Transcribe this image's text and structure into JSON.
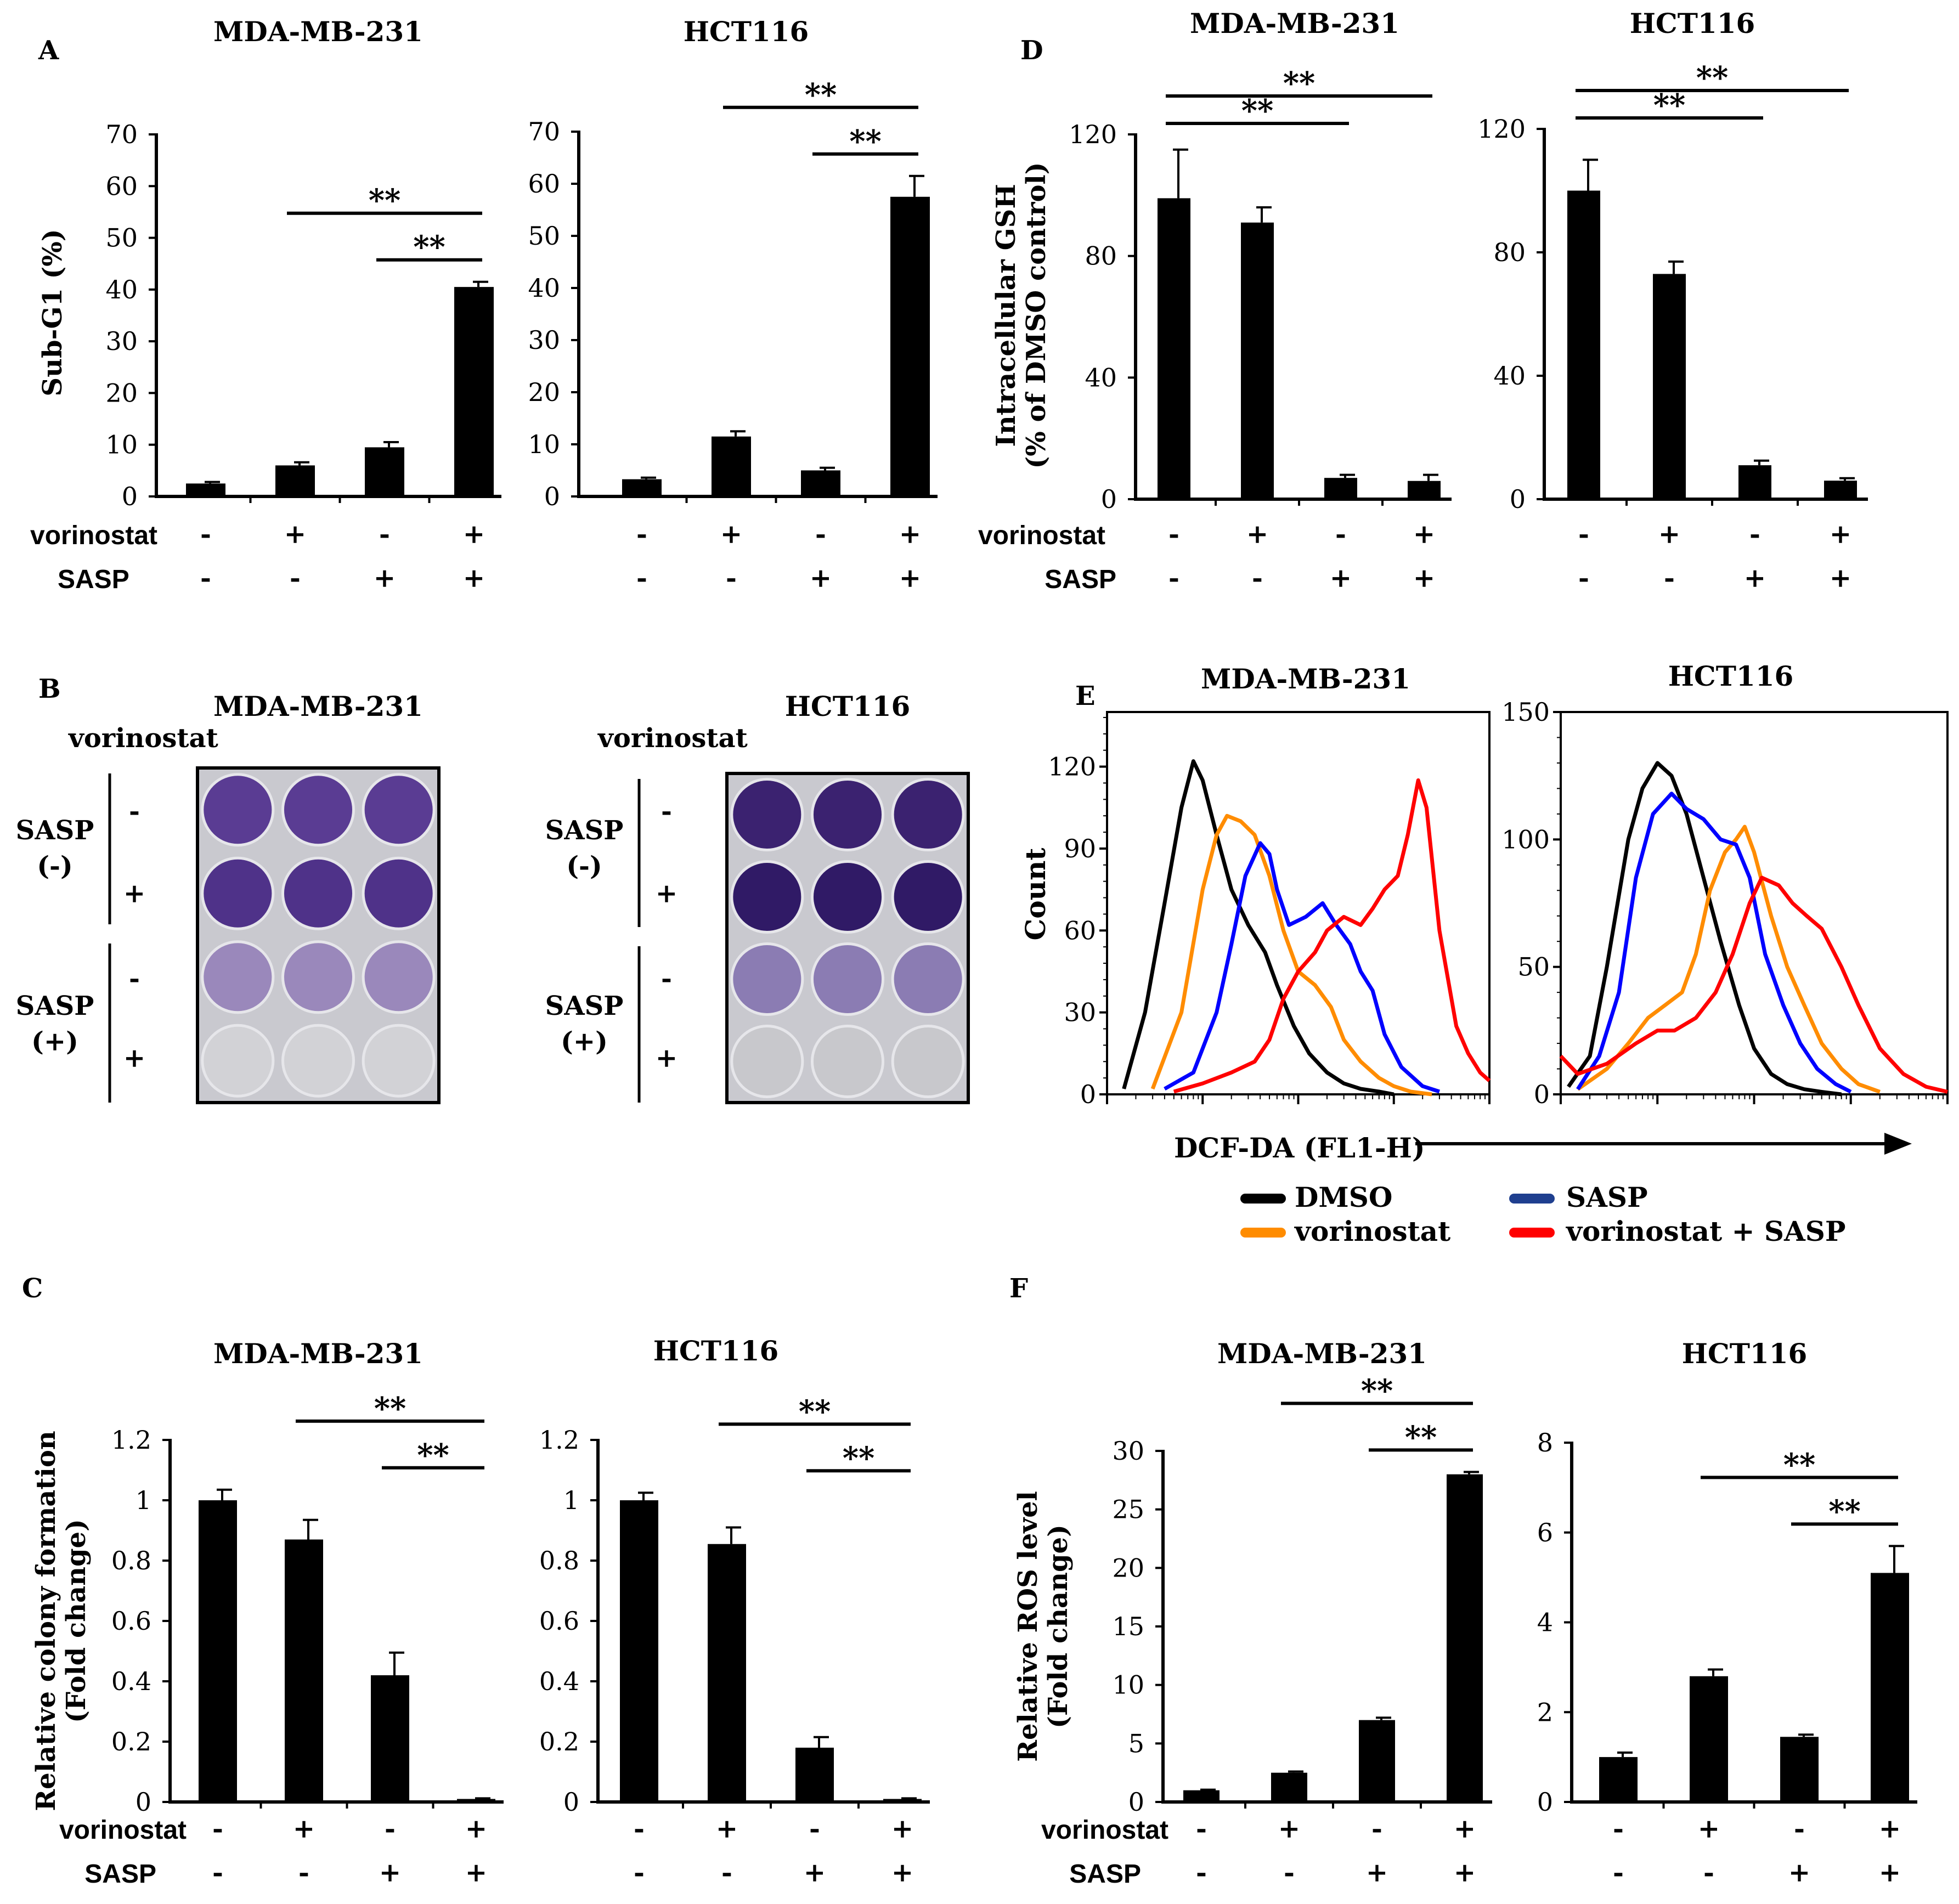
{
  "panel_letters": [
    "A",
    "B",
    "C",
    "D",
    "E",
    "F"
  ],
  "row_labels": {
    "vorinostat": "vorinostat",
    "sasp": "SASP"
  },
  "signs": {
    "vorinostat": [
      "-",
      "+",
      "-",
      "+"
    ],
    "sasp": [
      "-",
      "-",
      "+",
      "+"
    ]
  },
  "significance": "**",
  "panel_b": {
    "titles": [
      "MDA-MB-231",
      "HCT116"
    ],
    "vorinostat_label": "vorinostat",
    "groups": [
      {
        "label": "SASP",
        "sub": "(-)",
        "rows": [
          "-",
          "+"
        ]
      },
      {
        "label": "SASP",
        "sub": "(+)",
        "rows": [
          "-",
          "+"
        ]
      }
    ],
    "plate_well_colors": [
      [
        "#5a3c93",
        "#5a3c93",
        "#4f3289",
        "#4f3289",
        "#9a88bb",
        "#d2d2d6"
      ],
      [
        "#3b2270",
        "#3b2270",
        "#301a66",
        "#301a66",
        "#8b7cb3",
        "#c8c8cc"
      ]
    ]
  },
  "panel_e": {
    "xlabel": "DCF-DA (FL1-H)",
    "legend": [
      {
        "name": "DMSO",
        "color": "#000000"
      },
      {
        "name": "vorinostat",
        "color": "#ff8c00"
      },
      {
        "name": "SASP",
        "color": "#0000ff"
      },
      {
        "name": "vorinostat + SASP",
        "color": "#ff0000"
      }
    ]
  },
  "chart_data": [
    {
      "id": "A1",
      "type": "bar",
      "title": "MDA-MB-231",
      "ylabel": "Sub-G1 (%)",
      "ylim": [
        0,
        70
      ],
      "yticks": [
        0,
        10,
        20,
        30,
        40,
        50,
        60,
        70
      ],
      "categories": [
        "DMSO",
        "vorinostat",
        "SASP",
        "vorinostat + SASP"
      ],
      "values": [
        2.5,
        6,
        9.5,
        40.5
      ],
      "errors": [
        0.3,
        0.6,
        1.0,
        1.0
      ],
      "annotations": [
        {
          "from": 1,
          "to": 3,
          "label": "**"
        },
        {
          "from": 2,
          "to": 3,
          "label": "**"
        }
      ]
    },
    {
      "id": "A2",
      "type": "bar",
      "title": "HCT116",
      "ylabel": "",
      "ylim": [
        0,
        70
      ],
      "yticks": [
        0,
        10,
        20,
        30,
        40,
        50,
        60,
        70
      ],
      "categories": [
        "DMSO",
        "vorinostat",
        "SASP",
        "vorinostat + SASP"
      ],
      "values": [
        3.3,
        11.5,
        5,
        57.5
      ],
      "errors": [
        0.3,
        1.0,
        0.5,
        4.0
      ],
      "annotations": [
        {
          "from": 1,
          "to": 3,
          "label": "**"
        },
        {
          "from": 2,
          "to": 3,
          "label": "**"
        }
      ]
    },
    {
      "id": "D1",
      "type": "bar",
      "title": "MDA-MB-231",
      "ylabel": "Intracellular GSH (% of DMSO control)",
      "ylim": [
        0,
        120
      ],
      "yticks": [
        0,
        40,
        80,
        120
      ],
      "categories": [
        "DMSO",
        "vorinostat",
        "SASP",
        "vorinostat + SASP"
      ],
      "values": [
        99,
        91,
        7,
        6
      ],
      "errors": [
        16,
        5,
        1,
        2
      ],
      "annotations": [
        {
          "from": 0,
          "to": 3,
          "label": "**"
        },
        {
          "from": 0,
          "to": 2,
          "label": "**"
        }
      ]
    },
    {
      "id": "D2",
      "type": "bar",
      "title": "HCT116",
      "ylabel": "",
      "ylim": [
        0,
        120
      ],
      "yticks": [
        0,
        40,
        80,
        120
      ],
      "categories": [
        "DMSO",
        "vorinostat",
        "SASP",
        "vorinostat + SASP"
      ],
      "values": [
        100,
        73,
        11,
        6
      ],
      "errors": [
        10,
        4,
        1.5,
        0.8
      ],
      "annotations": [
        {
          "from": 0,
          "to": 3,
          "label": "**"
        },
        {
          "from": 0,
          "to": 2,
          "label": "**"
        }
      ]
    },
    {
      "id": "C1",
      "type": "bar",
      "title": "MDA-MB-231",
      "ylabel": "Relative colony formation (Fold change)",
      "ylim": [
        0,
        1.2
      ],
      "yticks": [
        0,
        0.2,
        0.4,
        0.6,
        0.8,
        1,
        1.2
      ],
      "categories": [
        "DMSO",
        "vorinostat",
        "SASP",
        "vorinostat + SASP"
      ],
      "values": [
        1.0,
        0.87,
        0.42,
        0.01
      ],
      "errors": [
        0.035,
        0.065,
        0.075,
        0.002
      ],
      "annotations": [
        {
          "from": 1,
          "to": 3,
          "label": "**"
        },
        {
          "from": 2,
          "to": 3,
          "label": "**"
        }
      ]
    },
    {
      "id": "C2",
      "type": "bar",
      "title": "HCT116",
      "ylabel": "",
      "ylim": [
        0,
        1.2
      ],
      "yticks": [
        0,
        0.2,
        0.4,
        0.6,
        0.8,
        1,
        1.2
      ],
      "categories": [
        "DMSO",
        "vorinostat",
        "SASP",
        "vorinostat + SASP"
      ],
      "values": [
        1.0,
        0.855,
        0.18,
        0.01
      ],
      "errors": [
        0.025,
        0.055,
        0.035,
        0.002
      ],
      "annotations": [
        {
          "from": 1,
          "to": 3,
          "label": "**"
        },
        {
          "from": 2,
          "to": 3,
          "label": "**"
        }
      ]
    },
    {
      "id": "F1",
      "type": "bar",
      "title": "MDA-MB-231",
      "ylabel": "Relative ROS level (Fold change)",
      "ylim": [
        0,
        30
      ],
      "yticks": [
        0,
        5,
        10,
        15,
        20,
        25,
        30
      ],
      "categories": [
        "DMSO",
        "vorinostat",
        "SASP",
        "vorinostat + SASP"
      ],
      "values": [
        1,
        2.5,
        7,
        28
      ],
      "errors": [
        0.05,
        0.1,
        0.2,
        0.2
      ],
      "annotations": [
        {
          "from": 1,
          "to": 3,
          "label": "**"
        },
        {
          "from": 2,
          "to": 3,
          "label": "**"
        }
      ]
    },
    {
      "id": "F2",
      "type": "bar",
      "title": "HCT116",
      "ylabel": "",
      "ylim": [
        0,
        8
      ],
      "yticks": [
        0,
        2,
        4,
        6,
        8
      ],
      "categories": [
        "DMSO",
        "vorinostat",
        "SASP",
        "vorinostat + SASP"
      ],
      "values": [
        1.0,
        2.8,
        1.45,
        5.1
      ],
      "errors": [
        0.1,
        0.15,
        0.05,
        0.6
      ],
      "annotations": [
        {
          "from": 1,
          "to": 3,
          "label": "**"
        },
        {
          "from": 2,
          "to": 3,
          "label": "**"
        }
      ]
    },
    {
      "id": "E1",
      "type": "line",
      "title": "MDA-MB-231",
      "xscale": "log",
      "xlim": [
        1,
        10000
      ],
      "ylabel": "Count",
      "ylim": [
        0,
        140
      ],
      "yticks": [
        0,
        30,
        60,
        90,
        120
      ],
      "series": [
        {
          "name": "DMSO",
          "x": [
            1.5,
            2.5,
            4,
            6,
            8,
            10,
            14,
            20,
            30,
            45,
            60,
            90,
            130,
            200,
            300,
            450,
            700,
            1000
          ],
          "y": [
            2,
            30,
            70,
            105,
            122,
            115,
            95,
            75,
            62,
            52,
            40,
            25,
            15,
            8,
            4,
            2,
            1,
            0
          ]
        },
        {
          "name": "vorinostat",
          "x": [
            3,
            6,
            10,
            14,
            18,
            25,
            35,
            50,
            70,
            100,
            150,
            220,
            300,
            450,
            700,
            1000,
            1500,
            2500
          ],
          "y": [
            2,
            30,
            75,
            95,
            102,
            100,
            95,
            80,
            60,
            45,
            40,
            32,
            20,
            12,
            6,
            3,
            1,
            0
          ]
        },
        {
          "name": "SASP",
          "x": [
            4,
            8,
            14,
            20,
            28,
            40,
            50,
            60,
            80,
            120,
            180,
            250,
            350,
            450,
            600,
            800,
            1200,
            2000,
            3000
          ],
          "y": [
            2,
            8,
            30,
            55,
            80,
            92,
            88,
            75,
            62,
            65,
            70,
            62,
            55,
            45,
            38,
            22,
            10,
            3,
            1
          ]
        },
        {
          "name": "vorinostat + SASP",
          "x": [
            5,
            10,
            20,
            35,
            50,
            70,
            100,
            150,
            200,
            300,
            450,
            600,
            800,
            1100,
            1400,
            1800,
            2200,
            3000,
            4500,
            6000,
            8000,
            10000
          ],
          "y": [
            1,
            4,
            8,
            12,
            20,
            35,
            45,
            52,
            60,
            65,
            62,
            68,
            75,
            80,
            95,
            115,
            105,
            60,
            25,
            15,
            8,
            5
          ]
        }
      ]
    },
    {
      "id": "E2",
      "type": "line",
      "title": "HCT116",
      "xscale": "log",
      "xlim": [
        1,
        10000
      ],
      "ylabel": "",
      "ylim": [
        0,
        150
      ],
      "yticks": [
        0,
        50,
        100,
        150
      ],
      "series": [
        {
          "name": "DMSO",
          "x": [
            1.2,
            2,
            3,
            5,
            7,
            10,
            14,
            20,
            30,
            45,
            70,
            100,
            150,
            220,
            330,
            500,
            800
          ],
          "y": [
            3,
            15,
            50,
            100,
            120,
            130,
            125,
            110,
            85,
            60,
            35,
            18,
            8,
            4,
            2,
            1,
            0
          ]
        },
        {
          "name": "vorinostat",
          "x": [
            1.5,
            3,
            5,
            8,
            12,
            18,
            25,
            35,
            50,
            65,
            80,
            100,
            150,
            220,
            330,
            500,
            800,
            1200,
            2000
          ],
          "y": [
            2,
            10,
            20,
            30,
            35,
            40,
            55,
            80,
            95,
            100,
            105,
            95,
            70,
            50,
            35,
            20,
            10,
            4,
            1
          ]
        },
        {
          "name": "SASP",
          "x": [
            1.5,
            2.5,
            4,
            6,
            9,
            14,
            20,
            30,
            45,
            65,
            90,
            130,
            200,
            300,
            450,
            700,
            1000
          ],
          "y": [
            2,
            15,
            40,
            85,
            110,
            118,
            112,
            108,
            100,
            98,
            85,
            55,
            35,
            20,
            10,
            4,
            1
          ]
        },
        {
          "name": "vorinostat + SASP",
          "x": [
            1,
            1.5,
            3,
            6,
            10,
            15,
            25,
            40,
            60,
            90,
            120,
            180,
            250,
            350,
            500,
            800,
            1200,
            2000,
            3500,
            6000,
            10000
          ],
          "y": [
            15,
            8,
            12,
            20,
            25,
            25,
            30,
            40,
            55,
            75,
            85,
            82,
            75,
            70,
            65,
            50,
            35,
            18,
            8,
            3,
            1
          ]
        }
      ]
    }
  ]
}
